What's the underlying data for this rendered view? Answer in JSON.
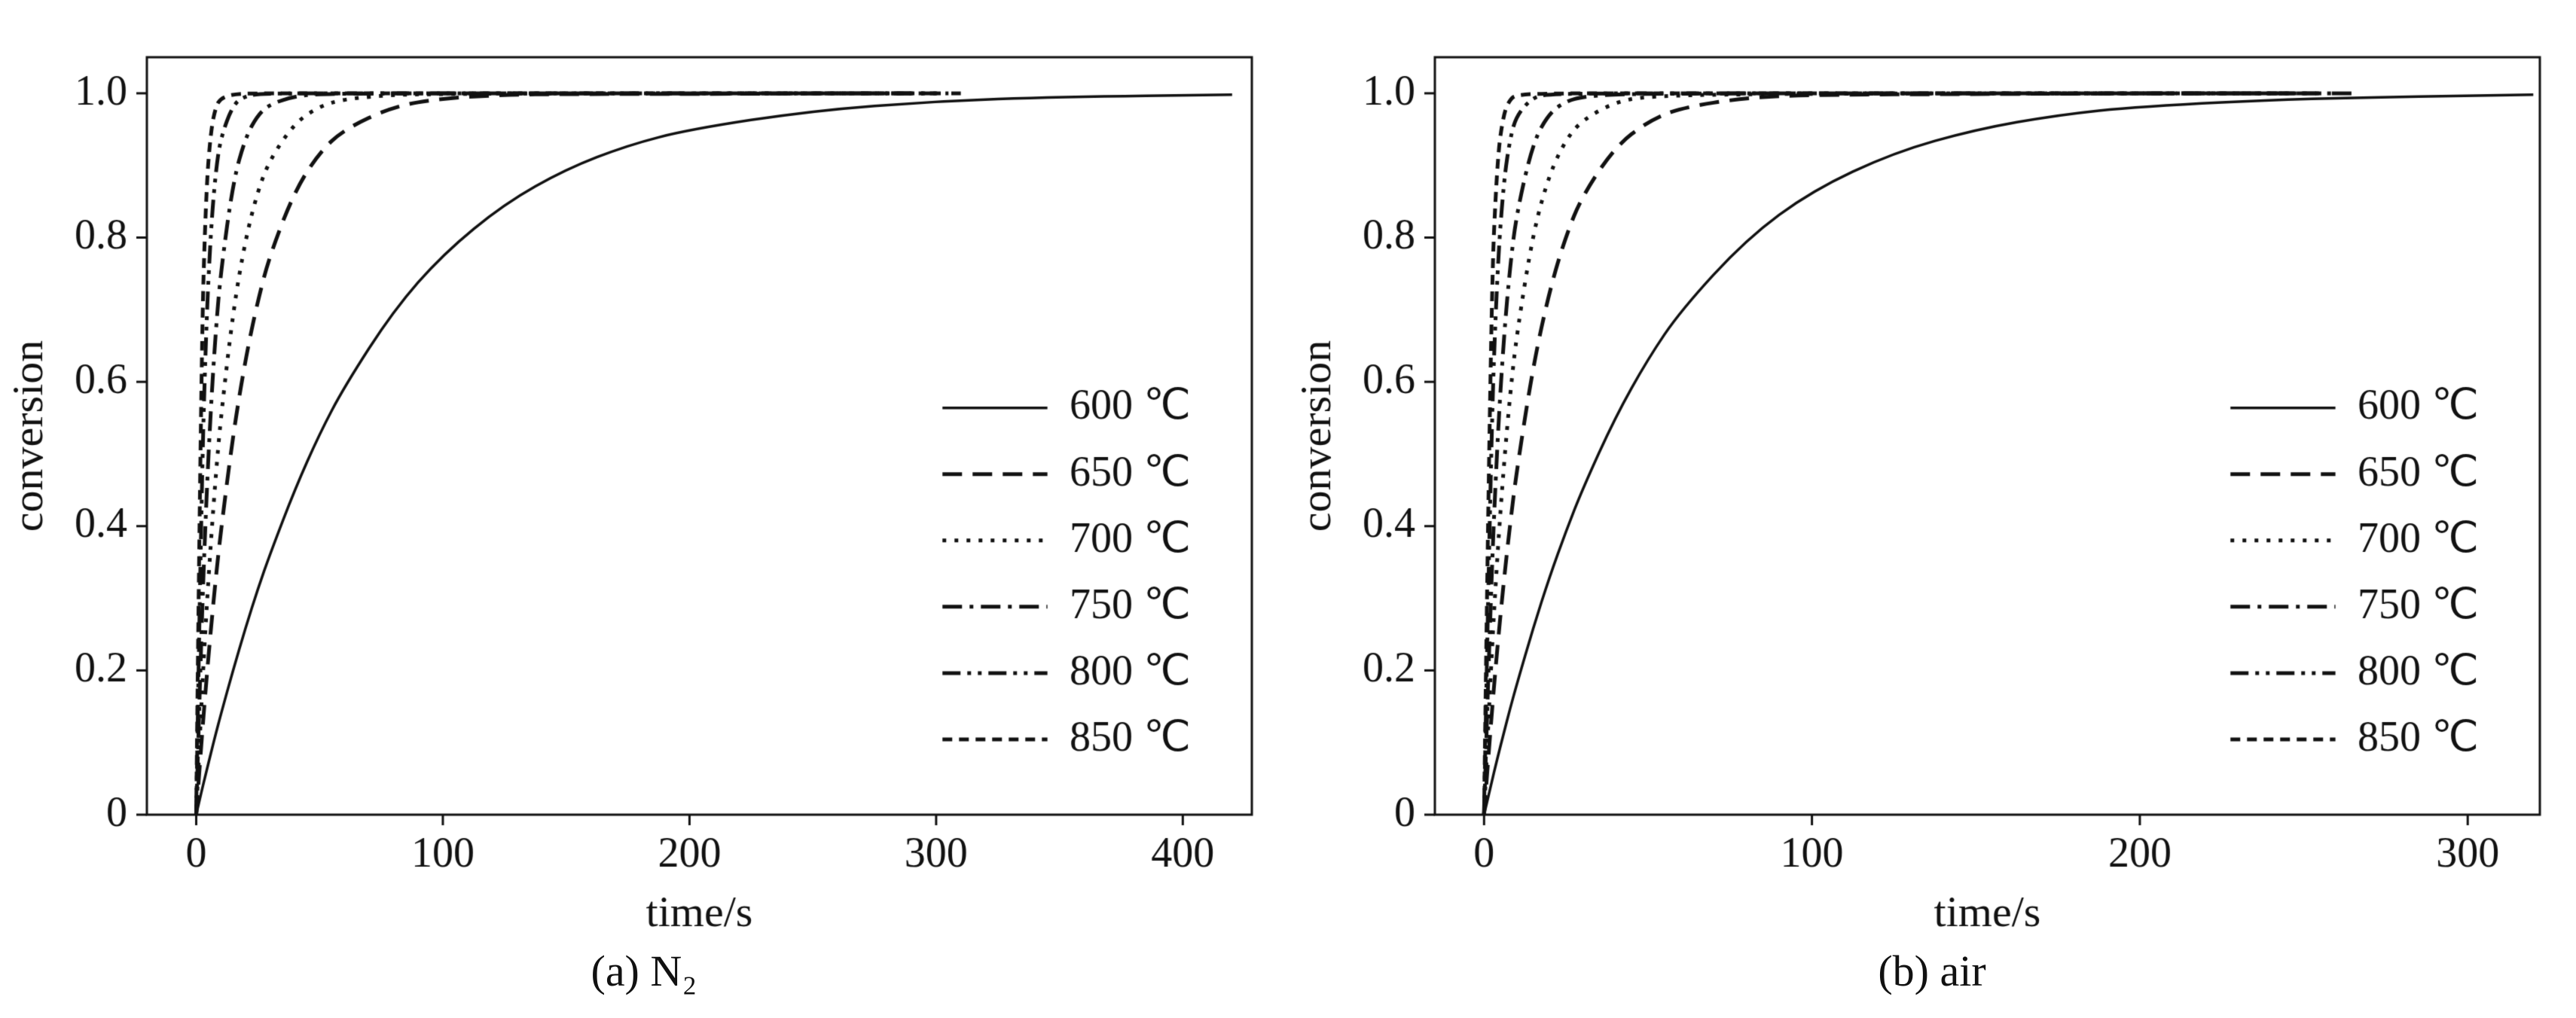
{
  "figure": {
    "background": "#ffffff",
    "line_color": "#111111"
  },
  "chart_data": [
    {
      "type": "line",
      "caption": "(a) N₂",
      "xlabel": "time/s",
      "ylabel": "conversion",
      "x_range": [
        -20,
        428
      ],
      "y_range": [
        0,
        1.05
      ],
      "x_ticks": [
        0,
        100,
        200,
        300,
        400
      ],
      "x_tick_labels": [
        "0",
        "100",
        "200",
        "300",
        "400"
      ],
      "y_ticks": [
        0,
        0.2,
        0.4,
        0.6,
        0.8,
        1.0
      ],
      "y_tick_labels": [
        "0",
        "0.2",
        "0.4",
        "0.6",
        "0.8",
        "1.0"
      ],
      "grid": false,
      "legend_position": "right-middle",
      "series": [
        {
          "name": "600 ℃",
          "style": "solid",
          "points": [
            [
              0,
              0
            ],
            [
              2,
              0.03
            ],
            [
              4,
              0.058
            ],
            [
              6,
              0.086
            ],
            [
              8,
              0.113
            ],
            [
              10,
              0.139
            ],
            [
              15,
              0.201
            ],
            [
              20,
              0.259
            ],
            [
              25,
              0.313
            ],
            [
              30,
              0.362
            ],
            [
              40,
              0.451
            ],
            [
              50,
              0.528
            ],
            [
              60,
              0.593
            ],
            [
              80,
              0.699
            ],
            [
              100,
              0.777
            ],
            [
              125,
              0.847
            ],
            [
              150,
              0.895
            ],
            [
              175,
              0.928
            ],
            [
              200,
              0.95
            ],
            [
              250,
              0.976
            ],
            [
              300,
              0.989
            ],
            [
              350,
              0.995
            ],
            [
              420,
              0.998
            ]
          ]
        },
        {
          "name": "650 ℃",
          "style": "dash",
          "points": [
            [
              0,
              0
            ],
            [
              2,
              0.095
            ],
            [
              4,
              0.181
            ],
            [
              6,
              0.259
            ],
            [
              8,
              0.33
            ],
            [
              10,
              0.393
            ],
            [
              15,
              0.528
            ],
            [
              20,
              0.632
            ],
            [
              25,
              0.713
            ],
            [
              30,
              0.777
            ],
            [
              40,
              0.865
            ],
            [
              50,
              0.918
            ],
            [
              60,
              0.95
            ],
            [
              80,
              0.982
            ],
            [
              100,
              0.993
            ],
            [
              125,
              0.998
            ],
            [
              150,
              0.999
            ],
            [
              200,
              0.999
            ],
            [
              260,
              1.0
            ],
            [
              310,
              1.0
            ]
          ]
        },
        {
          "name": "700 ℃",
          "style": "dot",
          "points": [
            [
              0,
              0
            ],
            [
              2,
              0.148
            ],
            [
              4,
              0.274
            ],
            [
              6,
              0.381
            ],
            [
              8,
              0.473
            ],
            [
              10,
              0.551
            ],
            [
              15,
              0.699
            ],
            [
              20,
              0.798
            ],
            [
              25,
              0.865
            ],
            [
              30,
              0.909
            ],
            [
              40,
              0.959
            ],
            [
              50,
              0.982
            ],
            [
              60,
              0.992
            ],
            [
              80,
              0.998
            ],
            [
              100,
              0.999
            ],
            [
              150,
              1.0
            ],
            [
              230,
              1.0
            ],
            [
              305,
              1.0
            ]
          ]
        },
        {
          "name": "750 ℃",
          "style": "dashdot",
          "points": [
            [
              0,
              0
            ],
            [
              2,
              0.244
            ],
            [
              4,
              0.429
            ],
            [
              6,
              0.568
            ],
            [
              8,
              0.674
            ],
            [
              10,
              0.753
            ],
            [
              15,
              0.878
            ],
            [
              20,
              0.939
            ],
            [
              25,
              0.97
            ],
            [
              30,
              0.985
            ],
            [
              40,
              0.996
            ],
            [
              50,
              0.999
            ],
            [
              80,
              1.0
            ],
            [
              150,
              1.0
            ],
            [
              230,
              1.0
            ],
            [
              300,
              1.0
            ]
          ]
        },
        {
          "name": "800 ℃",
          "style": "dashdotdot",
          "points": [
            [
              0,
              0
            ],
            [
              2,
              0.429
            ],
            [
              4,
              0.674
            ],
            [
              6,
              0.814
            ],
            [
              8,
              0.894
            ],
            [
              10,
              0.939
            ],
            [
              15,
              0.985
            ],
            [
              20,
              0.996
            ],
            [
              25,
              0.999
            ],
            [
              40,
              1.0
            ],
            [
              100,
              1.0
            ],
            [
              180,
              1.0
            ],
            [
              240,
              1.0
            ],
            [
              295,
              1.0
            ]
          ]
        },
        {
          "name": "850 ℃",
          "style": "shortdash",
          "points": [
            [
              0,
              0
            ],
            [
              2,
              0.632
            ],
            [
              4,
              0.865
            ],
            [
              6,
              0.95
            ],
            [
              8,
              0.982
            ],
            [
              10,
              0.993
            ],
            [
              15,
              0.999
            ],
            [
              25,
              1.0
            ],
            [
              70,
              1.0
            ],
            [
              150,
              1.0
            ],
            [
              220,
              1.0
            ],
            [
              290,
              1.0
            ]
          ]
        }
      ]
    },
    {
      "type": "line",
      "caption": "(b) air",
      "xlabel": "time/s",
      "ylabel": "conversion",
      "x_range": [
        -15,
        322
      ],
      "y_range": [
        0,
        1.05
      ],
      "x_ticks": [
        0,
        100,
        200,
        300
      ],
      "x_tick_labels": [
        "0",
        "100",
        "200",
        "300"
      ],
      "y_ticks": [
        0,
        0.2,
        0.4,
        0.6,
        0.8,
        1.0
      ],
      "y_tick_labels": [
        "0",
        "0.2",
        "0.4",
        "0.6",
        "0.8",
        "1.0"
      ],
      "grid": false,
      "legend_position": "right-middle",
      "series": [
        {
          "name": "600 ℃",
          "style": "solid",
          "points": [
            [
              0,
              0
            ],
            [
              2,
              0.039
            ],
            [
              4,
              0.077
            ],
            [
              6,
              0.113
            ],
            [
              8,
              0.148
            ],
            [
              10,
              0.181
            ],
            [
              15,
              0.259
            ],
            [
              20,
              0.33
            ],
            [
              25,
              0.393
            ],
            [
              30,
              0.451
            ],
            [
              40,
              0.551
            ],
            [
              50,
              0.632
            ],
            [
              60,
              0.699
            ],
            [
              80,
              0.798
            ],
            [
              100,
              0.865
            ],
            [
              125,
              0.918
            ],
            [
              150,
              0.95
            ],
            [
              175,
              0.97
            ],
            [
              200,
              0.982
            ],
            [
              250,
              0.993
            ],
            [
              320,
              0.998
            ]
          ]
        },
        {
          "name": "650 ℃",
          "style": "dash",
          "points": [
            [
              0,
              0
            ],
            [
              2,
              0.122
            ],
            [
              4,
              0.229
            ],
            [
              6,
              0.323
            ],
            [
              8,
              0.405
            ],
            [
              10,
              0.478
            ],
            [
              15,
              0.623
            ],
            [
              20,
              0.727
            ],
            [
              25,
              0.803
            ],
            [
              30,
              0.858
            ],
            [
              40,
              0.926
            ],
            [
              50,
              0.961
            ],
            [
              60,
              0.98
            ],
            [
              80,
              0.994
            ],
            [
              100,
              0.998
            ],
            [
              150,
              0.999
            ],
            [
              210,
              1.0
            ],
            [
              265,
              1.0
            ]
          ]
        },
        {
          "name": "700 ℃",
          "style": "dot",
          "points": [
            [
              0,
              0
            ],
            [
              2,
              0.197
            ],
            [
              4,
              0.356
            ],
            [
              6,
              0.483
            ],
            [
              8,
              0.585
            ],
            [
              10,
              0.667
            ],
            [
              15,
              0.808
            ],
            [
              20,
              0.889
            ],
            [
              25,
              0.936
            ],
            [
              30,
              0.963
            ],
            [
              40,
              0.988
            ],
            [
              50,
              0.996
            ],
            [
              80,
              0.999
            ],
            [
              150,
              1.0
            ],
            [
              210,
              1.0
            ],
            [
              260,
              1.0
            ]
          ]
        },
        {
          "name": "750 ℃",
          "style": "dashdot",
          "points": [
            [
              0,
              0
            ],
            [
              2,
              0.302
            ],
            [
              4,
              0.513
            ],
            [
              6,
              0.66
            ],
            [
              8,
              0.763
            ],
            [
              10,
              0.835
            ],
            [
              15,
              0.933
            ],
            [
              20,
              0.973
            ],
            [
              25,
              0.989
            ],
            [
              30,
              0.995
            ],
            [
              40,
              0.999
            ],
            [
              80,
              1.0
            ],
            [
              160,
              1.0
            ],
            [
              255,
              1.0
            ]
          ]
        },
        {
          "name": "800 ℃",
          "style": "dashdotdot",
          "points": [
            [
              0,
              0
            ],
            [
              2,
              0.503
            ],
            [
              4,
              0.753
            ],
            [
              6,
              0.878
            ],
            [
              8,
              0.939
            ],
            [
              10,
              0.97
            ],
            [
              15,
              0.995
            ],
            [
              20,
              0.999
            ],
            [
              40,
              1.0
            ],
            [
              100,
              1.0
            ],
            [
              180,
              1.0
            ],
            [
              250,
              1.0
            ]
          ]
        },
        {
          "name": "850 ℃",
          "style": "shortdash",
          "points": [
            [
              0,
              0
            ],
            [
              2,
              0.699
            ],
            [
              4,
              0.909
            ],
            [
              6,
              0.973
            ],
            [
              8,
              0.992
            ],
            [
              10,
              0.998
            ],
            [
              20,
              1.0
            ],
            [
              70,
              1.0
            ],
            [
              150,
              1.0
            ],
            [
              245,
              1.0
            ]
          ]
        }
      ]
    }
  ]
}
